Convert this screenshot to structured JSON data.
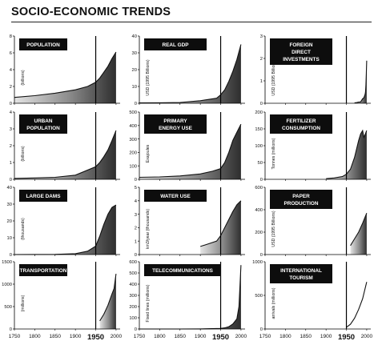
{
  "title": "SOCIO-ECONOMIC TRENDS",
  "x_tick_labels": [
    "1750",
    "1800",
    "1850",
    "1900",
    "1950",
    "2000"
  ],
  "chart_data": [
    {
      "type": "area",
      "title": "POPULATION",
      "ylabel": "(billions)",
      "ylim": [
        0,
        8
      ],
      "yticks": [
        "0",
        "2",
        "4",
        "6",
        "8"
      ],
      "marker_year": 1950,
      "line_only": false,
      "x": [
        1750,
        1800,
        1850,
        1900,
        1930,
        1950,
        1960,
        1970,
        1980,
        1990,
        2000
      ],
      "y": [
        0.7,
        0.9,
        1.2,
        1.6,
        2.0,
        2.5,
        3.0,
        3.7,
        4.4,
        5.3,
        6.1
      ]
    },
    {
      "type": "area",
      "title": "REAL GDP",
      "ylabel": "USD (1995 Billions)",
      "ylim": [
        0,
        40
      ],
      "yticks": [
        "0",
        "10",
        "20",
        "30",
        "40"
      ],
      "marker_year": 1950,
      "line_only": false,
      "x": [
        1750,
        1800,
        1850,
        1900,
        1940,
        1950,
        1960,
        1970,
        1980,
        1990,
        2000
      ],
      "y": [
        0.2,
        0.3,
        0.5,
        1.5,
        3.0,
        5.0,
        8.0,
        13.0,
        19.0,
        26.0,
        35.0
      ]
    },
    {
      "type": "area",
      "title": "FOREIGN DIRECT INVESTMENTS",
      "ylabel": "USD (1995 Billions)",
      "ylim": [
        0,
        3
      ],
      "yticks": [
        "0",
        "1",
        "2",
        "3"
      ],
      "marker_year": 1950,
      "line_only": false,
      "x": [
        1970,
        1975,
        1980,
        1985,
        1990,
        1993,
        1996,
        1997,
        1998,
        1999,
        2000
      ],
      "y": [
        0.02,
        0.03,
        0.05,
        0.06,
        0.2,
        0.25,
        0.4,
        0.5,
        0.8,
        1.3,
        1.9
      ]
    },
    {
      "type": "area",
      "title": "URBAN POPULATION",
      "ylabel": "(billions)",
      "ylim": [
        0,
        4
      ],
      "yticks": [
        "0",
        "1",
        "2",
        "3",
        "4"
      ],
      "marker_year": 1950,
      "line_only": false,
      "x": [
        1750,
        1800,
        1850,
        1900,
        1950,
        1960,
        1970,
        1980,
        1990,
        2000
      ],
      "y": [
        0.05,
        0.08,
        0.12,
        0.25,
        0.75,
        1.0,
        1.35,
        1.75,
        2.3,
        2.9
      ]
    },
    {
      "type": "area",
      "title": "PRIMARY ENERGY USE",
      "ylabel": "Exajoules",
      "ylim": [
        0,
        500
      ],
      "yticks": [
        "0",
        "100",
        "200",
        "300",
        "400",
        "500"
      ],
      "marker_year": 1950,
      "line_only": false,
      "x": [
        1750,
        1800,
        1850,
        1900,
        1930,
        1950,
        1960,
        1970,
        1980,
        1990,
        2000
      ],
      "y": [
        15,
        18,
        25,
        40,
        60,
        80,
        125,
        200,
        290,
        350,
        410
      ]
    },
    {
      "type": "area",
      "title": "FERTILIZER CONSUMPTION",
      "ylabel": "Tonnes (millions)",
      "ylim": [
        0,
        200
      ],
      "yticks": [
        "0",
        "50",
        "100",
        "150",
        "200"
      ],
      "marker_year": 1950,
      "line_only": false,
      "x": [
        1900,
        1920,
        1940,
        1950,
        1960,
        1970,
        1980,
        1985,
        1990,
        1993,
        1995,
        2000
      ],
      "y": [
        2,
        4,
        8,
        15,
        30,
        65,
        115,
        135,
        145,
        125,
        130,
        145
      ]
    },
    {
      "type": "area",
      "title": "LARGE DAMS",
      "ylabel": "(thousands)",
      "ylim": [
        0,
        40
      ],
      "yticks": [
        "0",
        "10",
        "20",
        "30",
        "40"
      ],
      "marker_year": 1950,
      "line_only": false,
      "x": [
        1750,
        1850,
        1900,
        1930,
        1950,
        1960,
        1970,
        1980,
        1990,
        2000
      ],
      "y": [
        0,
        0.1,
        0.5,
        2.0,
        5.0,
        11.0,
        18.0,
        24.0,
        28.0,
        29.5
      ]
    },
    {
      "type": "area",
      "title": "WATER USE",
      "ylabel": "km3/year (thousands)",
      "ylim": [
        0,
        5
      ],
      "yticks": [
        "0",
        "1",
        "2",
        "3",
        "4",
        "5"
      ],
      "marker_year": 1950,
      "line_only": false,
      "x": [
        1900,
        1920,
        1940,
        1950,
        1960,
        1970,
        1980,
        1990,
        2000
      ],
      "y": [
        0.6,
        0.8,
        1.0,
        1.4,
        2.0,
        2.6,
        3.2,
        3.7,
        4.0
      ]
    },
    {
      "type": "area",
      "title": "PAPER PRODUCTION",
      "ylabel": "USD (1995 Billions)",
      "ylim": [
        0,
        600
      ],
      "yticks": [
        "0",
        "200",
        "400",
        "600"
      ],
      "marker_year": 1950,
      "line_only": false,
      "x": [
        1960,
        1970,
        1980,
        1990,
        2000
      ],
      "y": [
        80,
        140,
        200,
        280,
        370
      ]
    },
    {
      "type": "area",
      "title": "TRANSPORTATION",
      "ylabel": "(millions)",
      "ylim": [
        0,
        1500
      ],
      "yticks": [
        "0",
        "500",
        "1000",
        "1500"
      ],
      "marker_year": 1950,
      "line_only": false,
      "x": [
        1960,
        1970,
        1980,
        1990,
        1995,
        2000
      ],
      "y": [
        180,
        330,
        530,
        780,
        900,
        1230
      ]
    },
    {
      "type": "area",
      "title": "TELECOMMUNICATIONS",
      "ylabel": "Fixed lines (millions)",
      "ylim": [
        0,
        600
      ],
      "yticks": [
        "0",
        "100",
        "200",
        "300",
        "400",
        "500",
        "600"
      ],
      "marker_year": 1950,
      "line_only": false,
      "x": [
        1750,
        1850,
        1900,
        1950,
        1960,
        1970,
        1980,
        1990,
        1995,
        2000
      ],
      "y": [
        0,
        0,
        1,
        5,
        10,
        20,
        45,
        90,
        200,
        570
      ]
    },
    {
      "type": "area",
      "title": "INTERNATIONAL TOURISM",
      "ylabel": "arrivals (millions)",
      "ylim": [
        0,
        1000
      ],
      "yticks": [
        "0",
        "500",
        "1000"
      ],
      "marker_year": 1950,
      "line_only": true,
      "x": [
        1950,
        1960,
        1970,
        1980,
        1990,
        2000
      ],
      "y": [
        25,
        70,
        160,
        290,
        450,
        700
      ]
    }
  ]
}
